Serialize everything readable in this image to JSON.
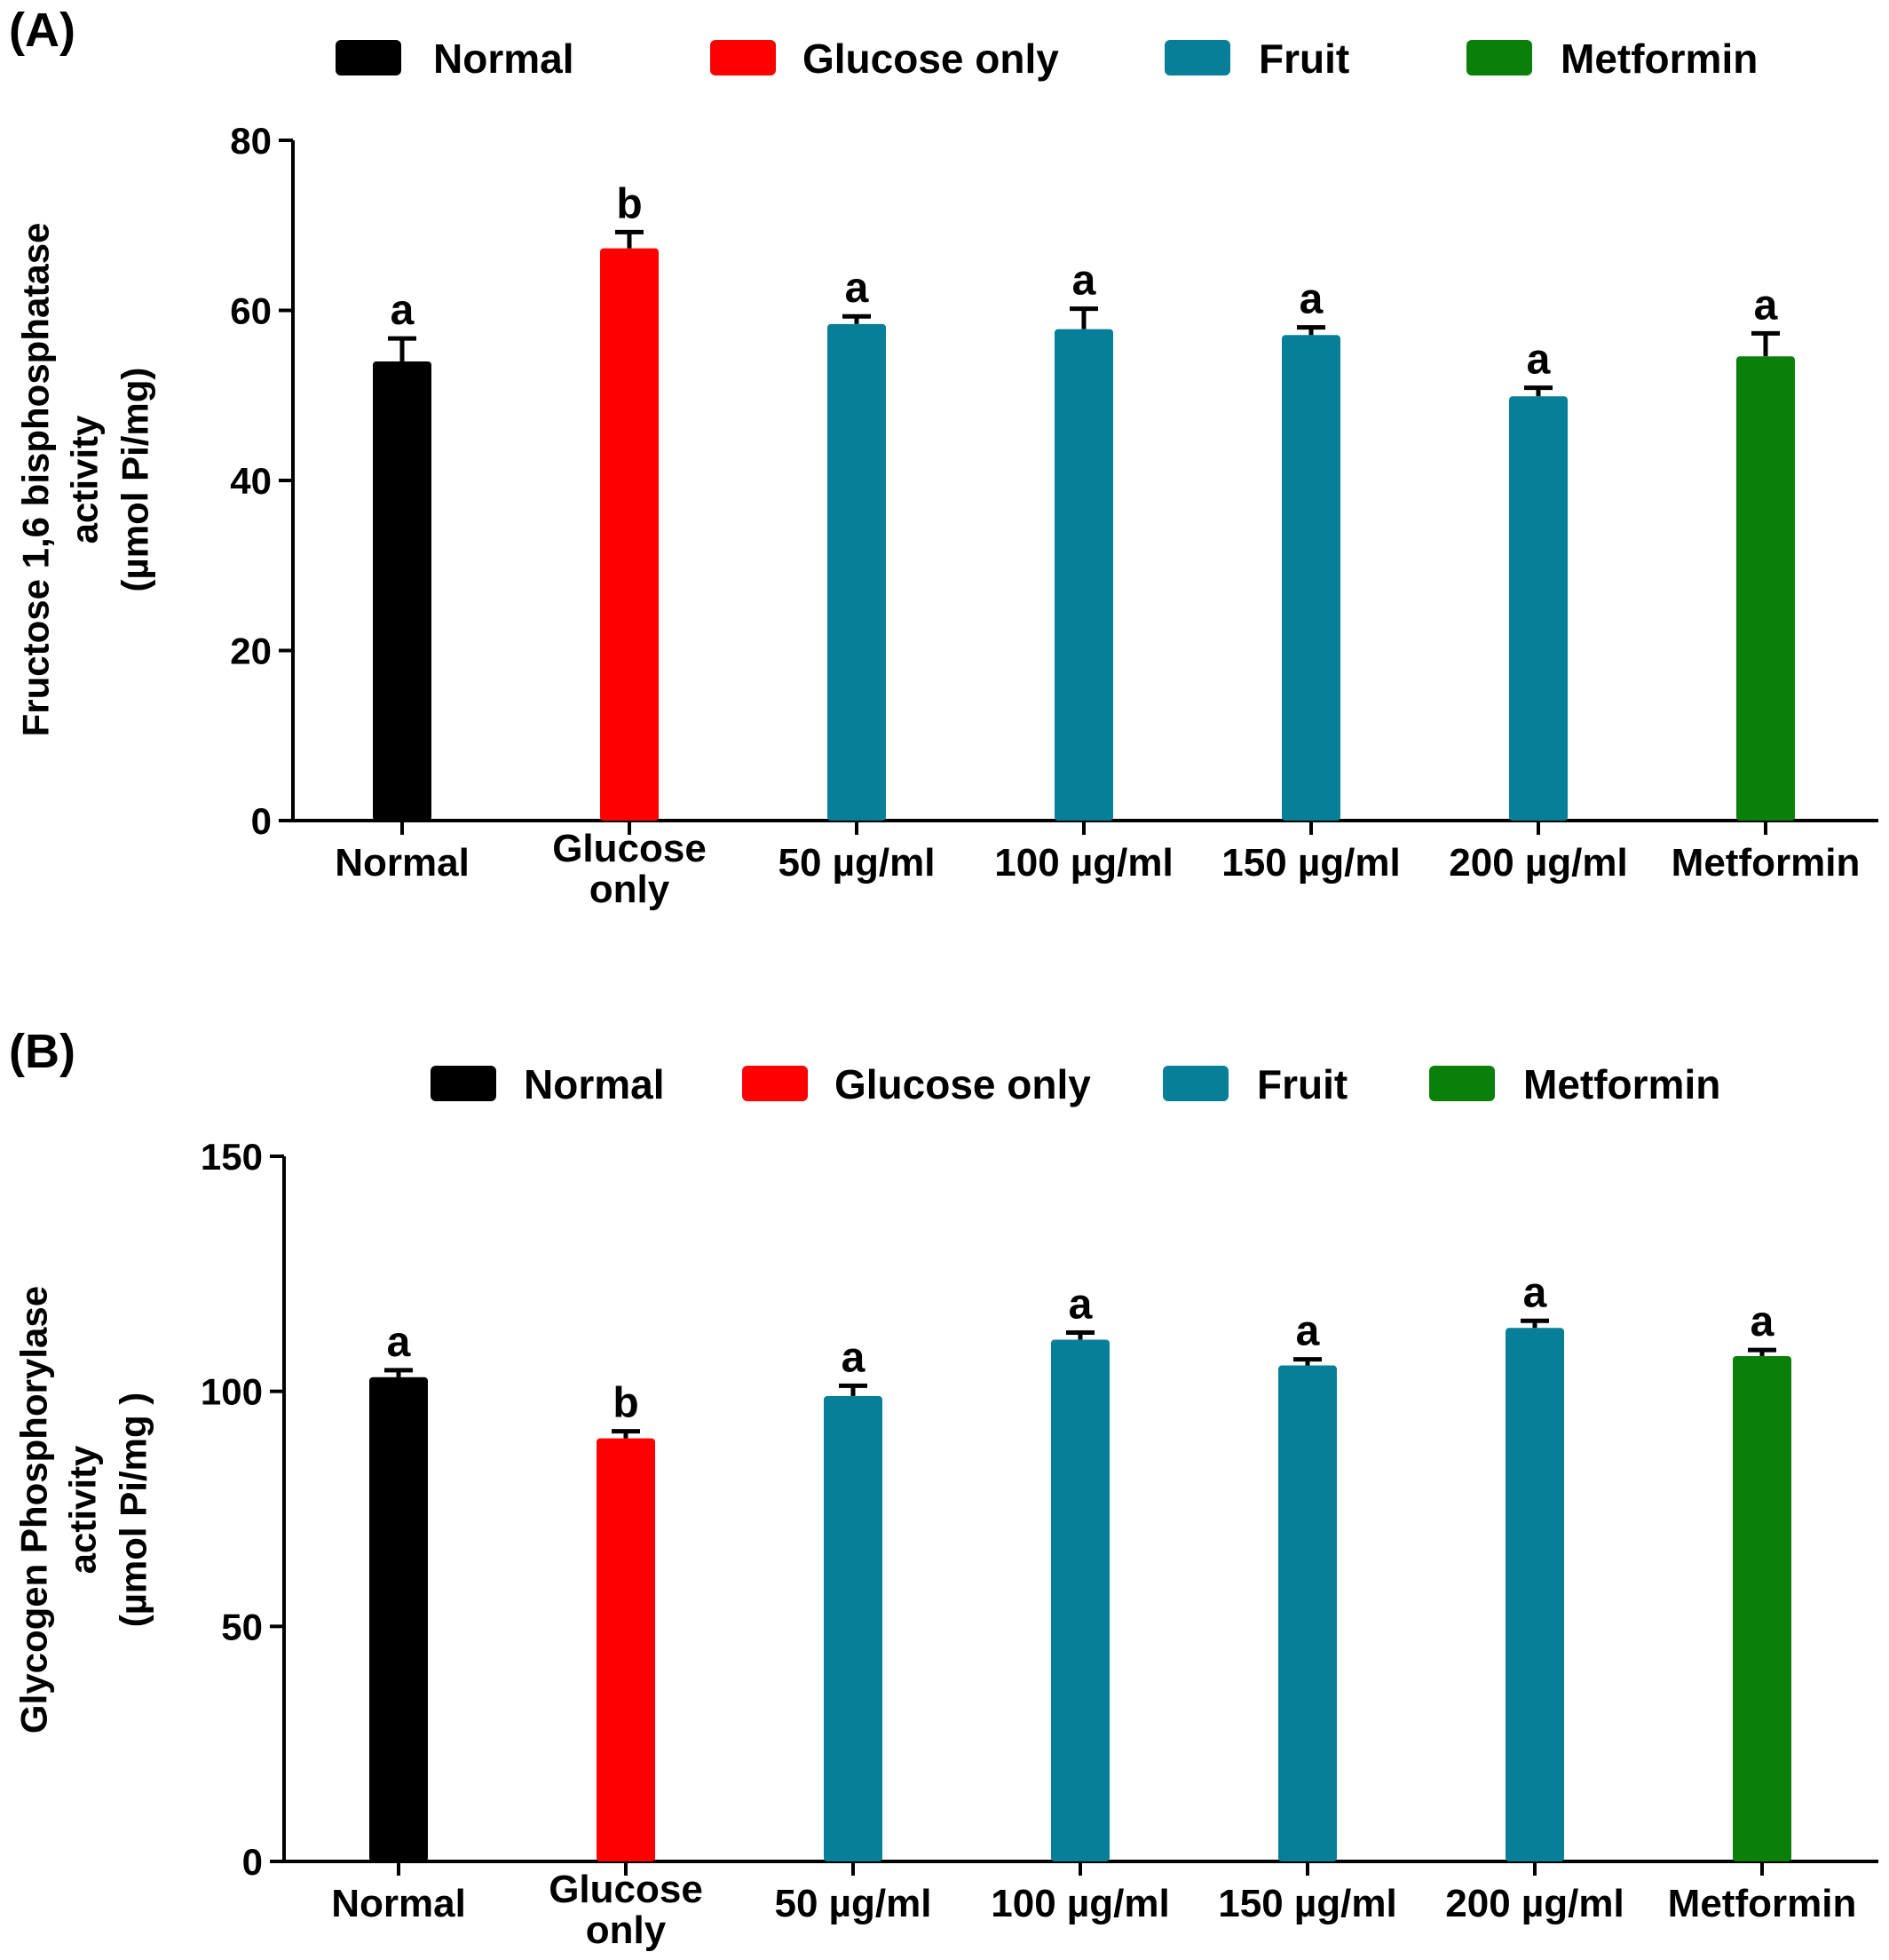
{
  "colors": {
    "normal": "#000000",
    "glucose_only": "#ff0000",
    "fruit": "#087f99",
    "metformin": "#0a7f0a",
    "axis": "#000000"
  },
  "chart_data": [
    {
      "type": "bar",
      "panel_label": "(A)",
      "ylabel_lines": [
        "Fructose 1,6 bisphosphatase",
        "activity",
        "(µmol Pi/mg)"
      ],
      "ylim": [
        0,
        80
      ],
      "yticks": [
        "0",
        "20",
        "40",
        "60",
        "80"
      ],
      "legend": [
        {
          "label": "Normal",
          "color": "#000000"
        },
        {
          "label": "Glucose only",
          "color": "#ff0000"
        },
        {
          "label": "Fruit",
          "color": "#087f99"
        },
        {
          "label": "Metformin",
          "color": "#0a7f0a"
        }
      ],
      "legend_position": "top",
      "grid": false,
      "categories": [
        {
          "lines": [
            "Normal"
          ]
        },
        {
          "lines": [
            "Glucose",
            "only"
          ]
        },
        {
          "lines": [
            "50 µg/ml"
          ]
        },
        {
          "lines": [
            "100 µg/ml"
          ]
        },
        {
          "lines": [
            "150 µg/ml"
          ]
        },
        {
          "lines": [
            "200 µg/ml"
          ]
        },
        {
          "lines": [
            "Metformin"
          ]
        }
      ],
      "values": [
        54,
        67.3,
        58.4,
        57.8,
        57.1,
        49.9,
        54.6
      ],
      "errors": [
        2.7,
        1.9,
        0.9,
        2.4,
        0.9,
        1.0,
        2.7
      ],
      "bar_colors": [
        "#000000",
        "#ff0000",
        "#087f99",
        "#087f99",
        "#087f99",
        "#087f99",
        "#0a7f0a"
      ],
      "significance": [
        "a",
        "b",
        "a",
        "a",
        "a",
        "a",
        "a"
      ]
    },
    {
      "type": "bar",
      "panel_label": "(B)",
      "ylabel_lines": [
        "Glycogen Phosphorylase",
        "activity",
        "(µmol Pi/mg )"
      ],
      "ylim": [
        0,
        150
      ],
      "yticks": [
        "0",
        "50",
        "100",
        "150"
      ],
      "legend": [
        {
          "label": "Normal",
          "color": "#000000"
        },
        {
          "label": "Glucose only",
          "color": "#ff0000"
        },
        {
          "label": "Fruit",
          "color": "#087f99"
        },
        {
          "label": "Metformin",
          "color": "#0a7f0a"
        }
      ],
      "legend_position": "top",
      "grid": false,
      "categories": [
        {
          "lines": [
            "Normal"
          ]
        },
        {
          "lines": [
            "Glucose",
            "only"
          ]
        },
        {
          "lines": [
            "50 µg/ml"
          ]
        },
        {
          "lines": [
            "100 µg/ml"
          ]
        },
        {
          "lines": [
            "150 µg/ml"
          ]
        },
        {
          "lines": [
            "200 µg/ml"
          ]
        },
        {
          "lines": [
            "Metformin"
          ]
        }
      ],
      "values": [
        103,
        90,
        99,
        111,
        105.5,
        113.5,
        107.5
      ],
      "errors": [
        1.5,
        1.5,
        2.2,
        1.5,
        1.3,
        1.5,
        1.3
      ],
      "bar_colors": [
        "#000000",
        "#ff0000",
        "#087f99",
        "#087f99",
        "#087f99",
        "#087f99",
        "#0a7f0a"
      ],
      "significance": [
        "a",
        "b",
        "a",
        "a",
        "a",
        "a",
        "a"
      ]
    }
  ]
}
